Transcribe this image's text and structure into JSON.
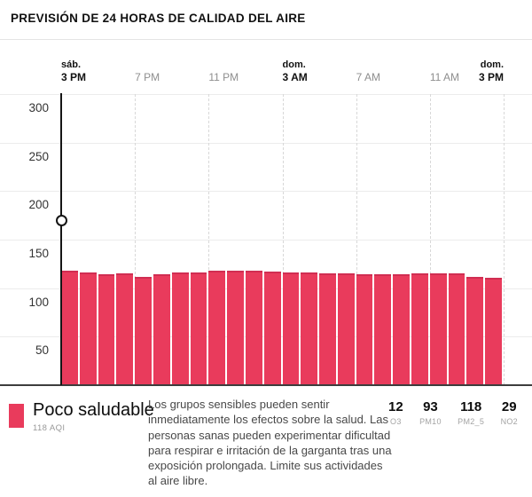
{
  "header": {
    "title": "PREVISIÓN DE 24 HORAS DE CALIDAD DEL AIRE"
  },
  "chart_data": {
    "type": "bar",
    "title": "Previsión de 24 horas de calidad del aire",
    "ylabel": "AQI",
    "ylim": [
      0,
      300
    ],
    "y_ticks": [
      50,
      100,
      150,
      200,
      250,
      300
    ],
    "grid": true,
    "x_ticks": [
      {
        "day": "sáb.",
        "label": "3 PM",
        "emphasis": true
      },
      {
        "day": "",
        "label": "7 PM",
        "emphasis": false
      },
      {
        "day": "",
        "label": "11 PM",
        "emphasis": false
      },
      {
        "day": "dom.",
        "label": "3 AM",
        "emphasis": true
      },
      {
        "day": "",
        "label": "7 AM",
        "emphasis": false
      },
      {
        "day": "",
        "label": "11 AM",
        "emphasis": false
      },
      {
        "day": "dom.",
        "label": "3 PM",
        "emphasis": true
      }
    ],
    "values": [
      118,
      116,
      114,
      115,
      112,
      114,
      116,
      116,
      118,
      118,
      118,
      117,
      116,
      116,
      115,
      115,
      114,
      114,
      114,
      115,
      115,
      115,
      112,
      111
    ],
    "bar_color": "#e93b5c",
    "bar_top_color": "#d12e52",
    "marker_tick_index": 0
  },
  "legend": {
    "category_label": "Poco saludable",
    "aqi_label": "118 AQI",
    "swatch_color": "#e93b5c",
    "description": "Los grupos sensibles pueden sentir inmediatamente los efectos sobre la salud. Las personas sanas pueden experimentar dificultad para respirar e irritación de la garganta tras una exposición prolongada. Limite sus actividades al aire libre."
  },
  "pollutants": [
    {
      "value": "12",
      "name": "O3"
    },
    {
      "value": "93",
      "name": "PM10"
    },
    {
      "value": "118",
      "name": "PM2_5"
    },
    {
      "value": "29",
      "name": "NO2"
    }
  ]
}
